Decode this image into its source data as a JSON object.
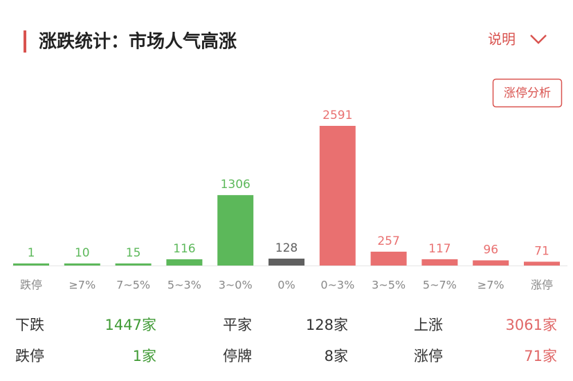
{
  "header": {
    "title": "涨跌统计：市场人气高涨",
    "explain": "说明",
    "button": "涨停分析"
  },
  "chart_data": {
    "type": "bar",
    "categories": [
      "跌停",
      "≥7%",
      "7~5%",
      "5~3%",
      "3~0%",
      "0%",
      "0~3%",
      "3~5%",
      "5~7%",
      "≥7%",
      "涨停"
    ],
    "values": [
      1,
      10,
      15,
      116,
      1306,
      128,
      2591,
      257,
      117,
      96,
      71
    ],
    "colors": [
      "#5cb85a",
      "#5cb85a",
      "#5cb85a",
      "#5cb85a",
      "#5cb85a",
      "#606060",
      "#e97070",
      "#e97070",
      "#e97070",
      "#e97070",
      "#e97070"
    ]
  },
  "stats": [
    [
      {
        "label": "下跌",
        "value": "1447家"
      },
      {
        "label": "平家",
        "value": "128家"
      },
      {
        "label": "上涨",
        "value": "3061家"
      }
    ],
    [
      {
        "label": "跌停",
        "value": "1家"
      },
      {
        "label": "停牌",
        "value": "8家"
      },
      {
        "label": "涨停",
        "value": "71家"
      }
    ]
  ]
}
